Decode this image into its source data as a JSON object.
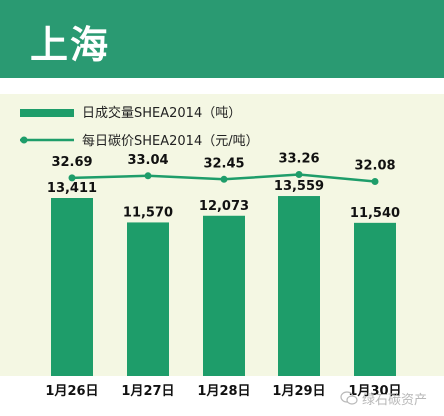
{
  "header": {
    "title": "上海"
  },
  "legend": {
    "bar_label": "日成交量SHEA2014（吨）",
    "line_label": "每日碳价SHEA2014（元/吨）"
  },
  "colors": {
    "header_bg": "#2a9a72",
    "panel_bg": "#f4f7e3",
    "bar": "#1e9d6a",
    "line": "#1e9d6a"
  },
  "watermark": {
    "text": "绿石碳资产"
  },
  "chart_data": {
    "type": "bar",
    "categories": [
      "1月26日",
      "1月27日",
      "1月28日",
      "1月29日",
      "1月30日"
    ],
    "series": [
      {
        "name": "日成交量SHEA2014（吨）",
        "type": "bar",
        "values": [
          13411,
          11570,
          12073,
          13559,
          11540
        ],
        "value_labels": [
          "13,411",
          "11,570",
          "12,073",
          "13,559",
          "11,540"
        ]
      },
      {
        "name": "每日碳价SHEA2014（元/吨）",
        "type": "line",
        "values": [
          32.69,
          33.04,
          32.45,
          33.26,
          32.08
        ],
        "value_labels": [
          "32.69",
          "33.04",
          "32.45",
          "33.26",
          "32.08"
        ]
      }
    ],
    "title": "",
    "xlabel": "",
    "ylabel": "",
    "ylim": [
      0,
      16000
    ],
    "grid": false,
    "legend_position": "top-left"
  }
}
